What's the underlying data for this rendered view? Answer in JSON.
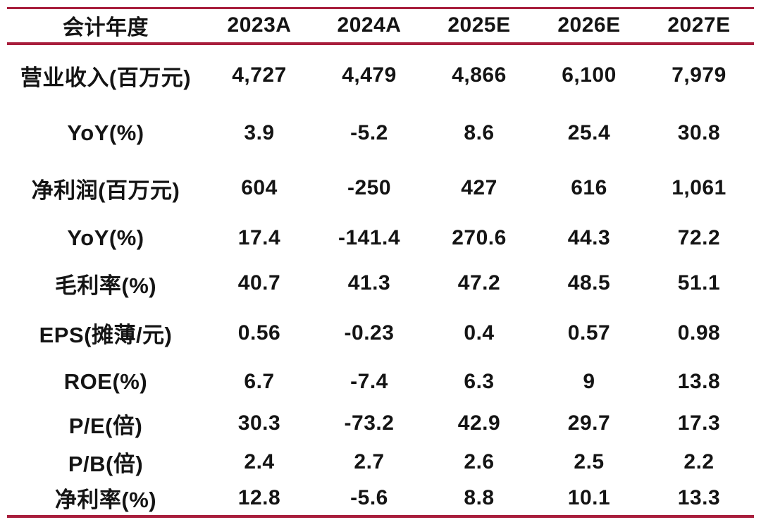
{
  "colors": {
    "accent": "#a81e3c",
    "text": "#141414",
    "background": "#ffffff"
  },
  "chart_data": {
    "type": "table",
    "title": "",
    "columns": [
      "会计年度",
      "2023A",
      "2024A",
      "2025E",
      "2026E",
      "2027E"
    ],
    "rows": [
      [
        "营业收入(百万元)",
        "4,727",
        "4,479",
        "4,866",
        "6,100",
        "7,979"
      ],
      [
        "YoY(%)",
        "3.9",
        "-5.2",
        "8.6",
        "25.4",
        "30.8"
      ],
      [
        "净利润(百万元)",
        "604",
        "-250",
        "427",
        "616",
        "1,061"
      ],
      [
        "YoY(%)",
        "17.4",
        "-141.4",
        "270.6",
        "44.3",
        "72.2"
      ],
      [
        "毛利率(%)",
        "40.7",
        "41.3",
        "47.2",
        "48.5",
        "51.1"
      ],
      [
        "EPS(摊薄/元)",
        "0.56",
        "-0.23",
        "0.4",
        "0.57",
        "0.98"
      ],
      [
        "ROE(%)",
        "6.7",
        "-7.4",
        "6.3",
        "9",
        "13.8"
      ],
      [
        "P/E(倍)",
        "30.3",
        "-73.2",
        "42.9",
        "29.7",
        "17.3"
      ],
      [
        "P/B(倍)",
        "2.4",
        "2.7",
        "2.6",
        "2.5",
        "2.2"
      ],
      [
        "净利率(%)",
        "12.8",
        "-5.6",
        "8.8",
        "10.1",
        "13.3"
      ]
    ]
  }
}
